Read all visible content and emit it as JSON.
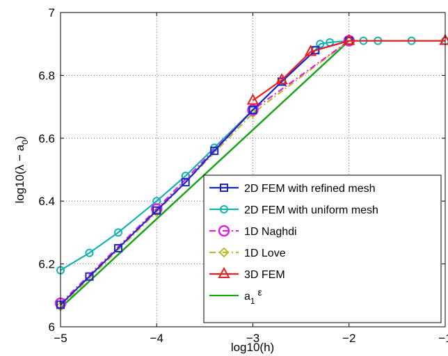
{
  "chart_data": {
    "type": "line",
    "xlabel": "log10(h)",
    "ylabel": "log10(λ − a",
    "ylabel_sub": "0",
    "ylabel_close": ")",
    "xlim": [
      -5,
      -1
    ],
    "ylim": [
      6,
      7
    ],
    "xticks": [
      -5,
      -4,
      -3,
      -2,
      -1
    ],
    "xtick_labels": [
      "−5",
      "−4",
      "−3",
      "−2",
      "−1"
    ],
    "yticks": [
      6,
      6.2,
      6.4,
      6.6,
      6.8,
      7
    ],
    "ytick_labels": [
      "6",
      "6.2",
      "6.4",
      "6.6",
      "6.8",
      "7"
    ],
    "grid": true,
    "legend_position": "lower-right",
    "series": [
      {
        "name": "2D FEM with refined mesh",
        "color": "#1f24c8",
        "marker": "square",
        "dash": "solid",
        "x": [
          -5,
          -4.7,
          -4.4,
          -4,
          -3.7,
          -3.4,
          -3,
          -2.7,
          -2.35,
          -2
        ],
        "y": [
          6.07,
          6.16,
          6.25,
          6.37,
          6.46,
          6.56,
          6.69,
          6.78,
          6.88,
          6.91
        ]
      },
      {
        "name": "2D FEM with uniform mesh",
        "color": "#13b2b2",
        "marker": "circle",
        "dash": "solid",
        "x": [
          -5,
          -4.7,
          -4.4,
          -4,
          -3.7,
          -3.4,
          -3,
          -2.7,
          -2.35,
          -2.3,
          -2.2,
          -2.0,
          -1.85,
          -1.7,
          -1.35,
          -1.0
        ],
        "y": [
          6.18,
          6.235,
          6.3,
          6.4,
          6.48,
          6.57,
          6.69,
          6.78,
          6.88,
          6.9,
          6.905,
          6.91,
          6.91,
          6.91,
          6.91,
          6.91
        ]
      },
      {
        "name": "1D Naghdi",
        "color": "#e020e0",
        "marker": "circle-large",
        "dash": "dashdot",
        "x": [
          -5,
          -4,
          -3,
          -2
        ],
        "y": [
          6.075,
          6.375,
          6.69,
          6.91
        ]
      },
      {
        "name": "1D Love",
        "color": "#b8b830",
        "marker": "diamond",
        "dash": "dashdot",
        "x": [
          -5,
          -4,
          -3,
          -2
        ],
        "y": [
          6.065,
          6.365,
          6.68,
          6.91
        ]
      },
      {
        "name": "3D FEM",
        "color": "#ee1c1c",
        "marker": "triangle",
        "dash": "solid",
        "x": [
          -3,
          -2.7,
          -2.4,
          -2,
          -1
        ],
        "y": [
          6.72,
          6.785,
          6.875,
          6.91,
          6.91
        ]
      },
      {
        "name": "a",
        "name_sub": "1",
        "name_rest": " ε",
        "color": "#1aa31a",
        "marker": "none",
        "dash": "solid",
        "x": [
          -5,
          -2
        ],
        "y": [
          6.06,
          6.91
        ]
      }
    ]
  }
}
